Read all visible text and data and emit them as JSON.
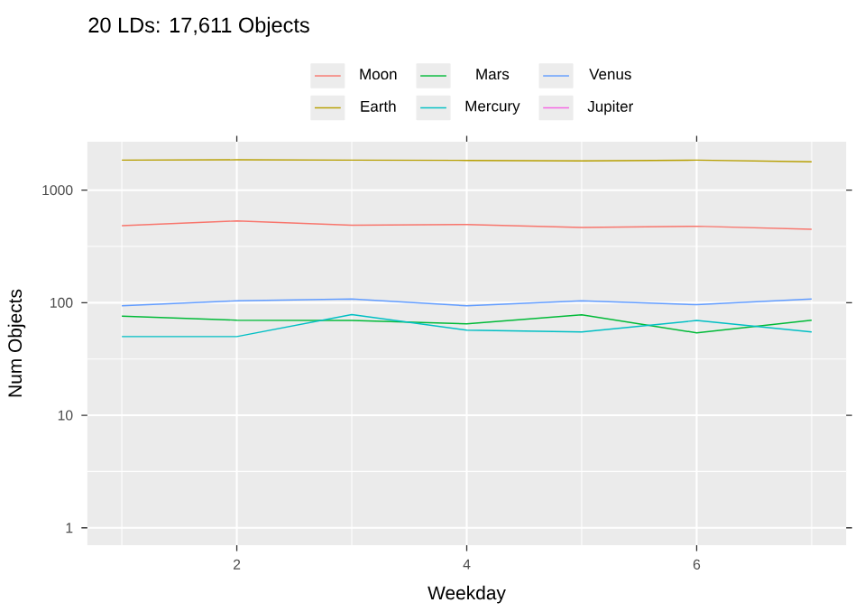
{
  "chart_data": {
    "type": "line",
    "title": "20 LDs: 17,611 Objects",
    "xlabel": "Weekday",
    "ylabel": "Num Objects",
    "x": [
      1,
      2,
      3,
      4,
      5,
      6,
      7
    ],
    "series": [
      {
        "name": "Moon",
        "color": "#F8766D",
        "values": [
          484,
          533,
          489,
          495,
          467,
          478,
          450
        ]
      },
      {
        "name": "Mars",
        "color": "#00BA38",
        "values": [
          76,
          70,
          69.5,
          65,
          78,
          54,
          70
        ]
      },
      {
        "name": "Venus",
        "color": "#619CFF",
        "values": [
          94,
          104,
          108,
          94,
          104,
          96,
          108
        ]
      },
      {
        "name": "Earth",
        "color": "#B79F00",
        "values": [
          1850,
          1860,
          1850,
          1840,
          1820,
          1850,
          1790
        ]
      },
      {
        "name": "Mercury",
        "color": "#00BFC4",
        "values": [
          50,
          50,
          78.5,
          57,
          55,
          69.5,
          55
        ]
      },
      {
        "name": "Jupiter",
        "color": "#F564E3",
        "values": [
          null,
          null,
          null,
          null,
          null,
          null,
          null
        ]
      }
    ],
    "log": "y",
    "xlim": [
      0.7,
      7.3
    ],
    "ylim": [
      0.7,
      2700
    ],
    "xticks": [
      2,
      4,
      6
    ],
    "yticks": [
      1,
      10,
      100,
      1000
    ],
    "grid": true,
    "legend": "top",
    "marker": "none",
    "line_style": "solid"
  }
}
